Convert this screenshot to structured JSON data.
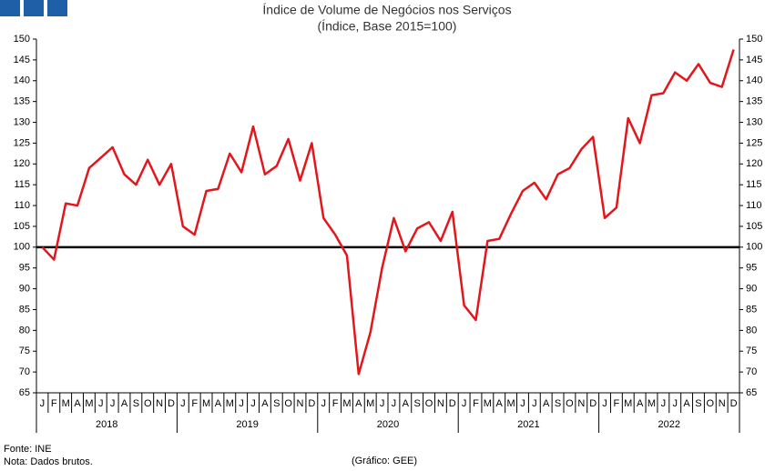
{
  "chart_data": {
    "type": "line",
    "title": "Índice de Volume de Negócios nos Serviços",
    "subtitle": "(Índice, Base 2015=100)",
    "categories": [
      "J",
      "F",
      "M",
      "A",
      "M",
      "J",
      "J",
      "A",
      "S",
      "O",
      "N",
      "D",
      "J",
      "F",
      "M",
      "A",
      "M",
      "J",
      "J",
      "A",
      "S",
      "O",
      "N",
      "D",
      "J",
      "F",
      "M",
      "A",
      "M",
      "J",
      "J",
      "A",
      "S",
      "O",
      "N",
      "D",
      "J",
      "F",
      "M",
      "A",
      "M",
      "J",
      "J",
      "A",
      "S",
      "O",
      "N",
      "D",
      "J",
      "F",
      "M",
      "A",
      "M",
      "J",
      "J",
      "A",
      "S",
      "O",
      "N",
      "D"
    ],
    "years": [
      "2018",
      "2019",
      "2020",
      "2021",
      "2022"
    ],
    "values": [
      100,
      97,
      110.5,
      110,
      119,
      121.5,
      124,
      117.5,
      115,
      121,
      115,
      120,
      105,
      103,
      113.5,
      114,
      122.5,
      118,
      129,
      117.5,
      119.5,
      126,
      116,
      125,
      107,
      103,
      98,
      69.5,
      79.5,
      95,
      107,
      99,
      104.5,
      106,
      101.5,
      108.5,
      86,
      82.5,
      101.5,
      102,
      108,
      113.5,
      115.5,
      111.5,
      117.5,
      119,
      123.5,
      126.5,
      107,
      109.5,
      131,
      125,
      136.5,
      137,
      142,
      140,
      144,
      139.5,
      138.5,
      147.5
    ],
    "color": "#e3161b",
    "reference_line": {
      "value": 100,
      "color": "#000000"
    },
    "ylim": [
      65,
      150
    ],
    "yticks": [
      65,
      70,
      75,
      80,
      85,
      90,
      95,
      100,
      105,
      110,
      115,
      120,
      125,
      130,
      135,
      140,
      145,
      150
    ],
    "source": "Fonte: INE",
    "note": "Nota: Dados brutos.",
    "credit": "(Gráfico: GEE)"
  }
}
